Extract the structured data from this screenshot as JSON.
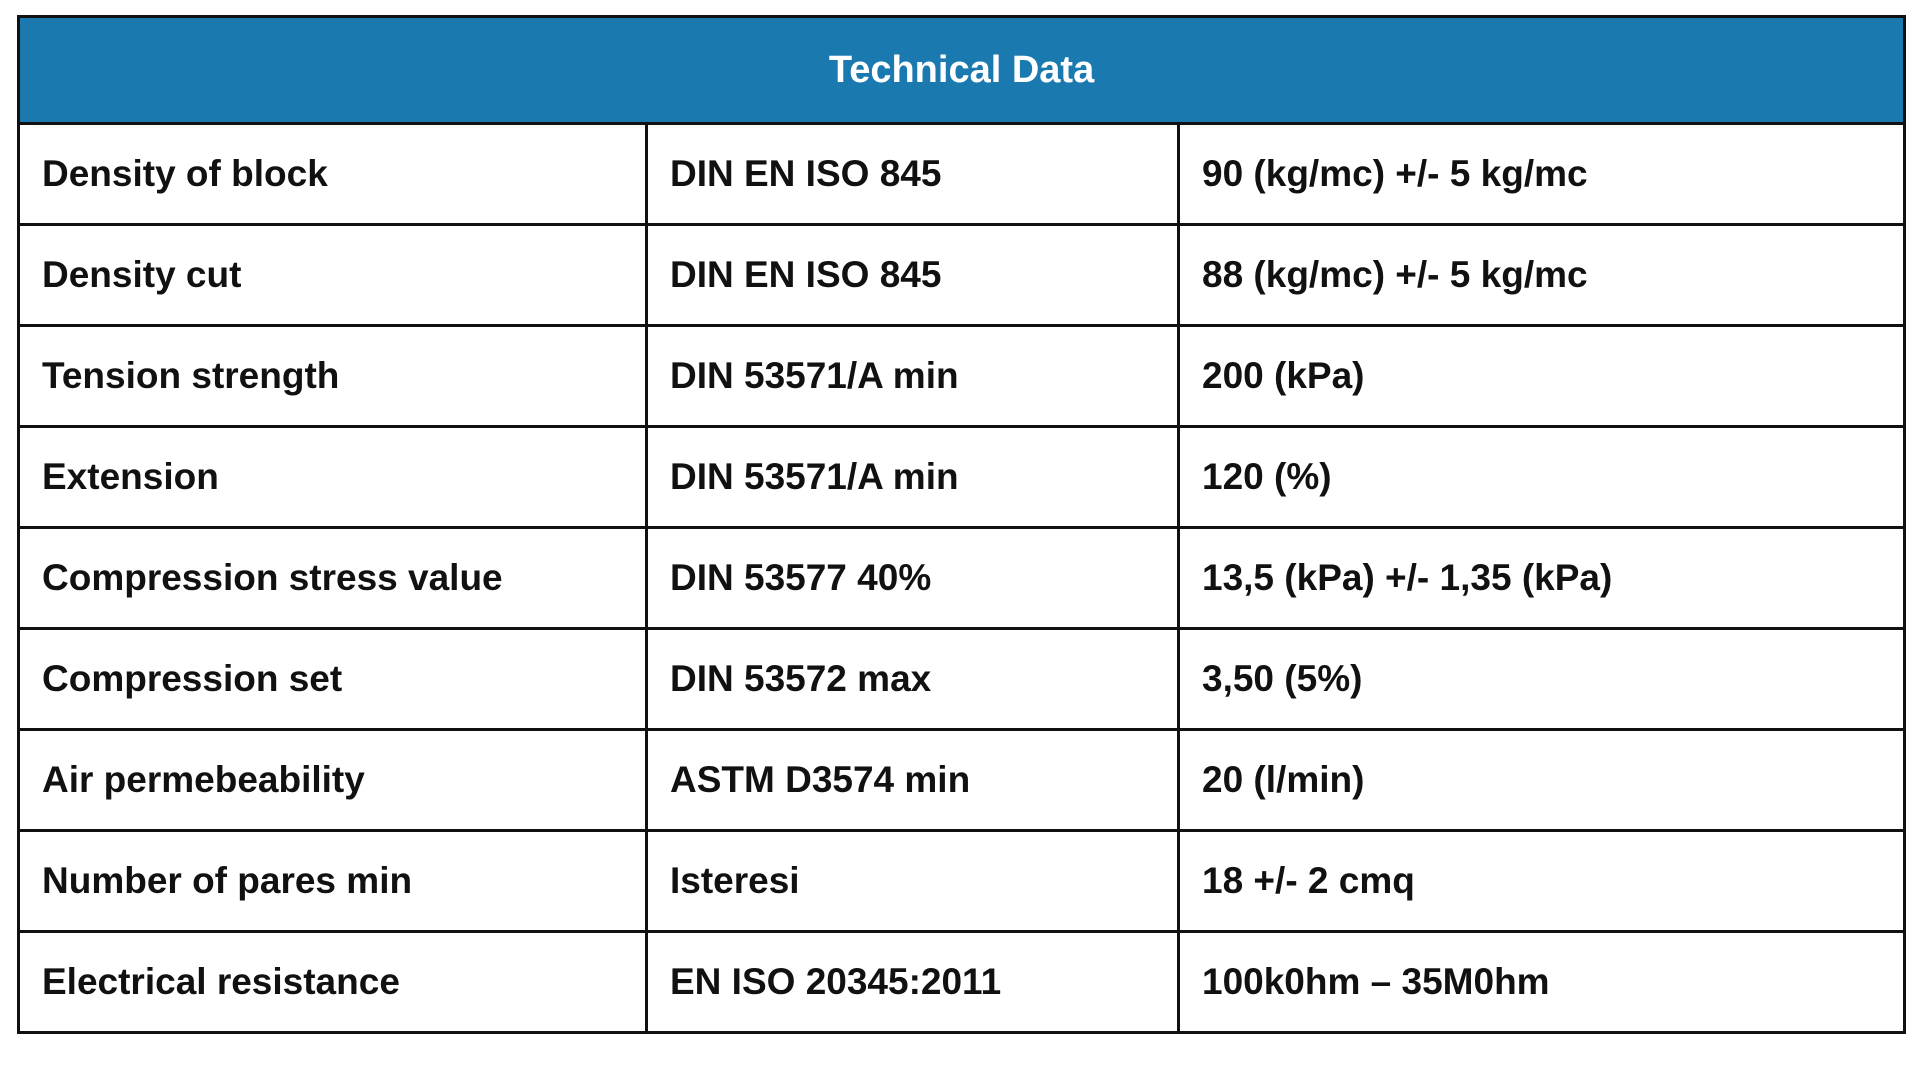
{
  "header": {
    "title": "Technical Data"
  },
  "table": {
    "rows": [
      [
        "Density of block",
        "DIN EN ISO 845",
        "90 (kg/mc) +/- 5 kg/mc"
      ],
      [
        "Density cut",
        "DIN EN ISO 845",
        "88 (kg/mc) +/- 5 kg/mc"
      ],
      [
        "Tension strength",
        "DIN 53571/A min",
        "200 (kPa)"
      ],
      [
        "Extension",
        "DIN 53571/A min",
        "120 (%)"
      ],
      [
        "Compression stress value",
        "DIN 53577 40%",
        "13,5 (kPa) +/- 1,35 (kPa)"
      ],
      [
        "Compression set",
        "DIN 53572 max",
        "3,50 (5%)"
      ],
      [
        "Air permebeability",
        "ASTM D3574 min",
        "20 (l/min)"
      ],
      [
        "Number of pares min",
        "Isteresi",
        "18 +/- 2 cmq"
      ],
      [
        "Electrical resistance",
        "EN ISO 20345:2011",
        "100k0hm – 35M0hm"
      ]
    ]
  }
}
